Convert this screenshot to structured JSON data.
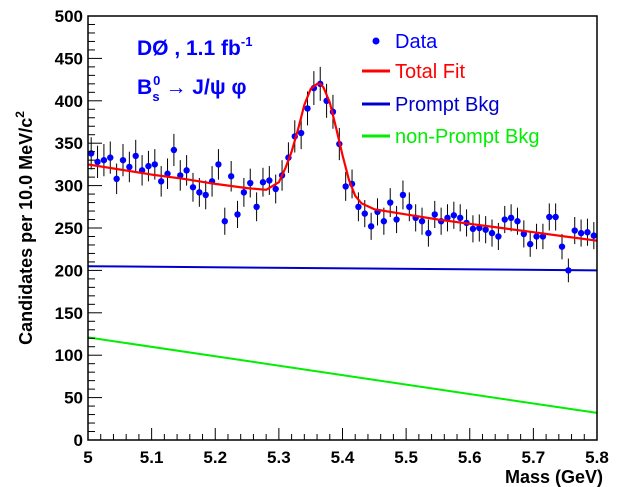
{
  "chart_data": {
    "type": "scatter",
    "title": "",
    "xlabel": "Mass  (GeV)",
    "ylabel": "Candidates per 10.0 MeV/c",
    "ylabel_sup": "2",
    "xlim": [
      5.0,
      5.8
    ],
    "ylim": [
      0,
      500
    ],
    "x_ticks": [
      "5",
      "5.1",
      "5.2",
      "5.3",
      "5.4",
      "5.5",
      "5.6",
      "5.7",
      "5.8"
    ],
    "y_ticks": [
      "0",
      "50",
      "100",
      "150",
      "200",
      "250",
      "300",
      "350",
      "400",
      "450",
      "500"
    ],
    "legend_placement": "top-right",
    "annotations": {
      "line1": "DØ , 1.1 fb",
      "line1_sup": "-1",
      "line2_main": "B",
      "line2_sup": "0",
      "line2_sub": "s",
      "line2_rest": " → J/ψ φ"
    },
    "colors": {
      "data": "#0000ff",
      "total_fit": "#ff0000",
      "prompt_bkg": "#0000cc",
      "non_prompt_bkg": "#00ee00"
    },
    "series": [
      {
        "name": "Data",
        "kind": "points",
        "x": [
          5.005,
          5.015,
          5.025,
          5.035,
          5.045,
          5.055,
          5.065,
          5.075,
          5.085,
          5.095,
          5.105,
          5.115,
          5.125,
          5.135,
          5.145,
          5.155,
          5.165,
          5.175,
          5.185,
          5.195,
          5.205,
          5.215,
          5.225,
          5.235,
          5.245,
          5.255,
          5.265,
          5.275,
          5.285,
          5.295,
          5.305,
          5.315,
          5.325,
          5.335,
          5.345,
          5.355,
          5.365,
          5.375,
          5.385,
          5.395,
          5.405,
          5.415,
          5.425,
          5.435,
          5.445,
          5.455,
          5.465,
          5.475,
          5.485,
          5.495,
          5.505,
          5.515,
          5.525,
          5.535,
          5.545,
          5.555,
          5.565,
          5.575,
          5.585,
          5.595,
          5.605,
          5.615,
          5.625,
          5.635,
          5.645,
          5.655,
          5.665,
          5.675,
          5.685,
          5.695,
          5.705,
          5.715,
          5.725,
          5.735,
          5.745,
          5.755,
          5.765,
          5.775,
          5.785,
          5.795
        ],
        "y": [
          338,
          328,
          330,
          333,
          308,
          330,
          322,
          335,
          318,
          323,
          325,
          305,
          314,
          342,
          312,
          318,
          298,
          292,
          289,
          305,
          325,
          258,
          311,
          266,
          292,
          303,
          275,
          304,
          306,
          296,
          312,
          333,
          358,
          362,
          391,
          415,
          420,
          400,
          387,
          349,
          299,
          302,
          275,
          267,
          252,
          269,
          258,
          280,
          260,
          289,
          275,
          262,
          258,
          244,
          266,
          258,
          262,
          265,
          262,
          256,
          249,
          250,
          248,
          244,
          240,
          260,
          262,
          258,
          243,
          231,
          240,
          240,
          263,
          263,
          228,
          200,
          247,
          244,
          245,
          241
        ],
        "err": [
          19,
          19,
          19,
          19,
          18,
          19,
          18,
          19,
          18,
          18,
          18,
          18,
          18,
          19,
          18,
          18,
          17,
          17,
          17,
          18,
          18,
          16,
          18,
          16,
          17,
          17,
          17,
          17,
          17,
          17,
          18,
          18,
          19,
          19,
          20,
          20,
          20,
          20,
          20,
          19,
          17,
          17,
          17,
          16,
          16,
          16,
          16,
          17,
          16,
          17,
          17,
          16,
          16,
          16,
          16,
          16,
          16,
          16,
          16,
          16,
          16,
          16,
          16,
          16,
          16,
          16,
          16,
          16,
          16,
          15,
          15,
          15,
          16,
          16,
          15,
          14,
          16,
          16,
          16,
          16
        ]
      },
      {
        "name": "Total Fit",
        "kind": "line",
        "x": [
          5.0,
          5.05,
          5.1,
          5.15,
          5.2,
          5.25,
          5.28,
          5.3,
          5.31,
          5.32,
          5.33,
          5.34,
          5.35,
          5.36,
          5.365,
          5.37,
          5.38,
          5.39,
          5.4,
          5.41,
          5.42,
          5.43,
          5.45,
          5.5,
          5.55,
          5.6,
          5.65,
          5.7,
          5.75,
          5.8
        ],
        "y": [
          325,
          319,
          313,
          308,
          302,
          297,
          295,
          304,
          320,
          340,
          366,
          395,
          414,
          420,
          420,
          416,
          398,
          368,
          336,
          307,
          288,
          279,
          272,
          266,
          260,
          255,
          250,
          245,
          240,
          235
        ]
      },
      {
        "name": "Prompt Bkg",
        "kind": "line",
        "x": [
          5.0,
          5.8
        ],
        "y": [
          205,
          200
        ]
      },
      {
        "name": "non-Prompt Bkg",
        "kind": "line",
        "x": [
          5.0,
          5.8
        ],
        "y": [
          121,
          32
        ]
      }
    ]
  }
}
